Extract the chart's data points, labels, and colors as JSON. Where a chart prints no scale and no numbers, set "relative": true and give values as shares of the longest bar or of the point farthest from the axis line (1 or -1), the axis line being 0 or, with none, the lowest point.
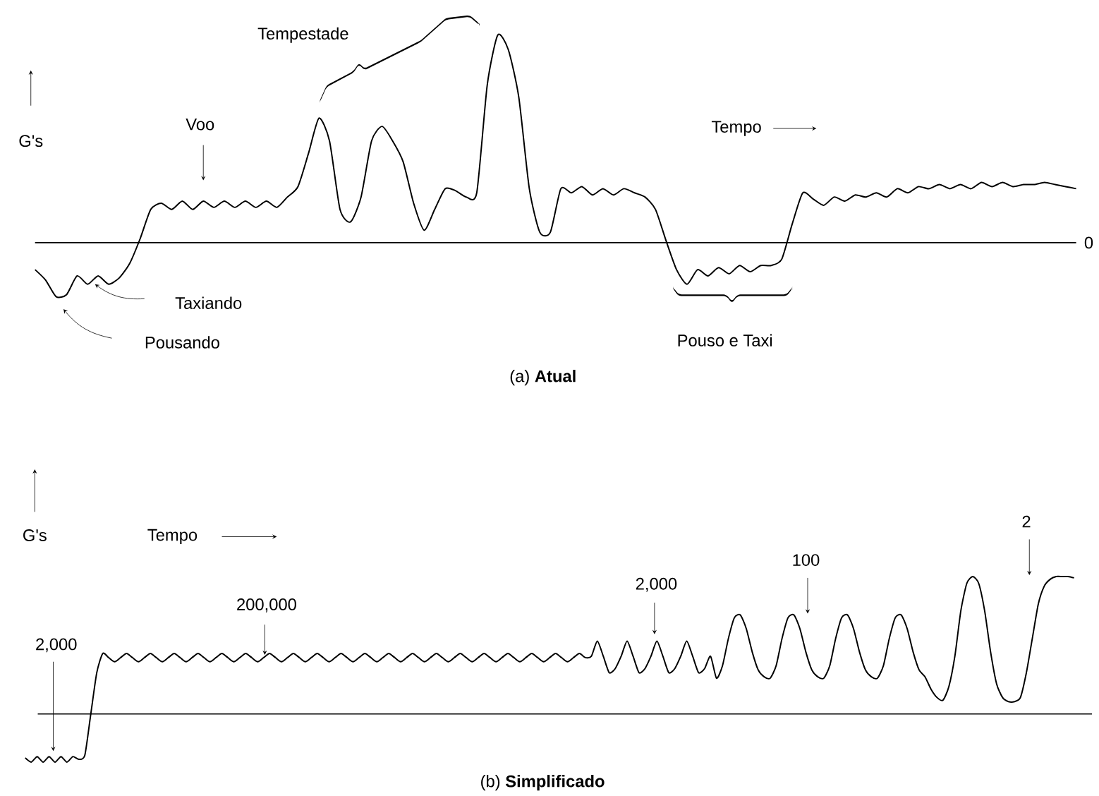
{
  "chart_data": [
    {
      "type": "line",
      "relative": true,
      "title": "(a) **Atual**",
      "xlabel": "Tempo",
      "ylabel": "G's",
      "categories": [
        null,
        null,
        null,
        null,
        null,
        null,
        null,
        null,
        null,
        null,
        null,
        null,
        null,
        null,
        null,
        null,
        null,
        null,
        null,
        null,
        null,
        null,
        null,
        null,
        null,
        null,
        null,
        null,
        null,
        null,
        null,
        null,
        null,
        null,
        null,
        null,
        null,
        null,
        null,
        null,
        null,
        null,
        null,
        null,
        null,
        null,
        null,
        null,
        null,
        null,
        null,
        null,
        null,
        null,
        null,
        null,
        null,
        null,
        null,
        null,
        null,
        null,
        null,
        null,
        null,
        null,
        null,
        null,
        null,
        null,
        null,
        null,
        null,
        null,
        null,
        null,
        null,
        null,
        null,
        null,
        null,
        null,
        null,
        null,
        null,
        null,
        null,
        null,
        null,
        null,
        null,
        null,
        null,
        null,
        null,
        null,
        null,
        null,
        null,
        null
      ],
      "series": [
        {
          "color": "#000000",
          "values": [
            -0.13,
            -0.18,
            -0.26,
            -0.25,
            -0.16,
            -0.2,
            -0.16,
            -0.2,
            -0.17,
            -0.1,
            0.02,
            0.16,
            0.19,
            0.16,
            0.2,
            0.16,
            0.2,
            0.17,
            0.2,
            0.17,
            0.2,
            0.17,
            0.2,
            0.17,
            0.22,
            0.27,
            0.43,
            0.6,
            0.49,
            0.16,
            0.1,
            0.22,
            0.49,
            0.56,
            0.49,
            0.39,
            0.19,
            0.06,
            0.16,
            0.26,
            0.25,
            0.22,
            0.24,
            0.76,
            1.0,
            0.93,
            0.7,
            0.26,
            0.05,
            0.05,
            0.26,
            0.24,
            0.27,
            0.23,
            0.26,
            0.23,
            0.26,
            0.24,
            0.22,
            0.16,
            0.01,
            -0.13,
            -0.2,
            -0.13,
            -0.16,
            -0.12,
            -0.15,
            -0.11,
            -0.14,
            -0.11,
            -0.11,
            -0.08,
            0.09,
            0.24,
            0.21,
            0.18,
            0.22,
            0.2,
            0.23,
            0.22,
            0.24,
            0.22,
            0.26,
            0.24,
            0.27,
            0.26,
            0.28,
            0.26,
            0.28,
            0.26,
            0.29,
            0.27,
            0.29,
            0.27,
            0.28,
            0.28,
            0.29,
            0.28,
            0.27,
            0.26
          ]
        }
      ],
      "annotations": [
        "Tempestade",
        "Voo",
        "Taxiando",
        "Pousando",
        "Pouso e Taxi",
        "0"
      ]
    },
    {
      "type": "line",
      "relative": true,
      "title": "(b) **Simplificado**",
      "xlabel": "Tempo",
      "ylabel": "G's",
      "categories": [
        null,
        null,
        null,
        null,
        null,
        null,
        null,
        null,
        null,
        null,
        null,
        null,
        null,
        null,
        null,
        null,
        null,
        null,
        null,
        null,
        null,
        null,
        null,
        null,
        null,
        null,
        null,
        null,
        null,
        null,
        null,
        null,
        null,
        null,
        null,
        null,
        null,
        null,
        null,
        null,
        null,
        null,
        null,
        null,
        null,
        null,
        null,
        null,
        null,
        null,
        null,
        null,
        null,
        null,
        null,
        null,
        null,
        null,
        null,
        null,
        null,
        null,
        null,
        null,
        null,
        null,
        null,
        null,
        null,
        null,
        null,
        null,
        null,
        null,
        null,
        null,
        null,
        null,
        null,
        null,
        null,
        null,
        null,
        null,
        null,
        null,
        null,
        null,
        null,
        null,
        null,
        null,
        null,
        null,
        null,
        null,
        null,
        null,
        null,
        null,
        null,
        null,
        null,
        null,
        null,
        null,
        null,
        null,
        null,
        null,
        null,
        null,
        null,
        null,
        null,
        null,
        null,
        null,
        null,
        null,
        null,
        null,
        null,
        null,
        null,
        null,
        null,
        null,
        null,
        null,
        null,
        null,
        null,
        null,
        null,
        null,
        null,
        null,
        null,
        null,
        null,
        null,
        null,
        null,
        null,
        null,
        null,
        null,
        null,
        null,
        null,
        null,
        null,
        null,
        null,
        null,
        null,
        null,
        null,
        null,
        null,
        null,
        null,
        null,
        null,
        null,
        null,
        null,
        null,
        null,
        null,
        null,
        null,
        null,
        null,
        null,
        null
      ],
      "series": [
        {
          "color": "#000000",
          "values": [
            -0.32,
            -0.35,
            -0.31,
            -0.35,
            -0.31,
            -0.35,
            -0.31,
            -0.35,
            -0.31,
            -0.33,
            -0.3,
            0.0,
            0.3,
            0.44,
            0.41,
            0.38,
            0.41,
            0.44,
            0.41,
            0.38,
            0.41,
            0.44,
            0.41,
            0.38,
            0.41,
            0.44,
            0.41,
            0.38,
            0.41,
            0.44,
            0.41,
            0.38,
            0.41,
            0.44,
            0.41,
            0.38,
            0.41,
            0.44,
            0.41,
            0.38,
            0.41,
            0.44,
            0.41,
            0.38,
            0.41,
            0.44,
            0.41,
            0.38,
            0.41,
            0.44,
            0.41,
            0.38,
            0.41,
            0.44,
            0.41,
            0.38,
            0.41,
            0.44,
            0.41,
            0.38,
            0.41,
            0.44,
            0.41,
            0.38,
            0.41,
            0.44,
            0.41,
            0.38,
            0.41,
            0.44,
            0.41,
            0.38,
            0.41,
            0.44,
            0.41,
            0.38,
            0.41,
            0.44,
            0.41,
            0.38,
            0.41,
            0.44,
            0.41,
            0.38,
            0.41,
            0.44,
            0.41,
            0.38,
            0.41,
            0.44,
            0.41,
            0.38,
            0.41,
            0.44,
            0.41,
            0.42,
            0.53,
            0.42,
            0.3,
            0.33,
            0.42,
            0.53,
            0.42,
            0.3,
            0.33,
            0.42,
            0.53,
            0.42,
            0.3,
            0.33,
            0.42,
            0.53,
            0.42,
            0.3,
            0.33,
            0.42,
            0.26,
            0.35,
            0.55,
            0.7,
            0.72,
            0.62,
            0.45,
            0.32,
            0.27,
            0.26,
            0.35,
            0.55,
            0.7,
            0.72,
            0.62,
            0.45,
            0.32,
            0.27,
            0.26,
            0.35,
            0.55,
            0.7,
            0.72,
            0.62,
            0.45,
            0.32,
            0.27,
            0.26,
            0.35,
            0.55,
            0.7,
            0.72,
            0.62,
            0.45,
            0.32,
            0.27,
            0.18,
            0.12,
            0.1,
            0.2,
            0.42,
            0.75,
            0.95,
            1.0,
            0.95,
            0.75,
            0.45,
            0.22,
            0.12,
            0.09,
            0.09,
            0.12,
            0.3,
            0.55,
            0.8,
            0.93,
            0.98,
            1.0,
            1.0,
            1.0,
            0.99
          ]
        }
      ],
      "annotations": [
        "2,000",
        "200,000",
        "2,000",
        "100",
        "2"
      ]
    }
  ]
}
